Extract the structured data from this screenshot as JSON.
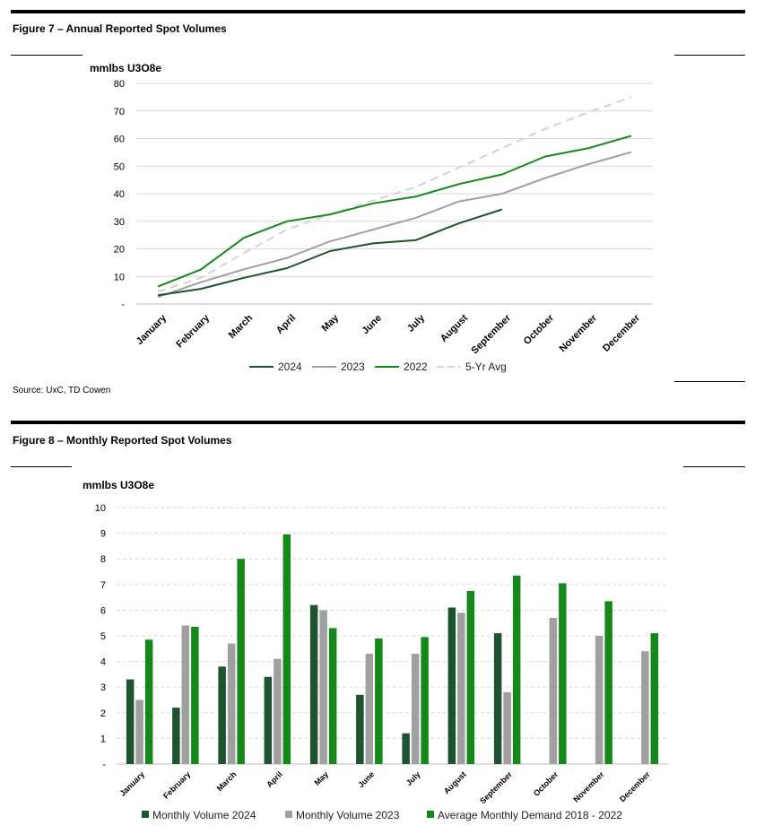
{
  "figure7": {
    "title": "Figure 7 – Annual Reported Spot Volumes",
    "source": "Source: UxC, TD Cowen"
  },
  "figure8": {
    "title": "Figure 8 – Monthly Reported Spot Volumes"
  },
  "colors": {
    "dark_green": "#1e5230",
    "gray": "#a0a0a0",
    "green": "#15881a",
    "light_gray": "#d3d3d3",
    "grid": "#d9d9d9"
  },
  "chart_data": [
    {
      "type": "line",
      "title": "Figure 7 – Annual Reported Spot Volumes",
      "ylabel": "mmlbs U3O8e",
      "xlabel": "",
      "ylim": [
        0,
        80
      ],
      "yticks": [
        "-",
        "10",
        "20",
        "30",
        "40",
        "50",
        "60",
        "70",
        "80"
      ],
      "categories": [
        "January",
        "February",
        "March",
        "April",
        "May",
        "June",
        "July",
        "August",
        "September",
        "October",
        "November",
        "December"
      ],
      "series": [
        {
          "name": "2024",
          "values": [
            3.2,
            5.5,
            9.5,
            13,
            19.2,
            22,
            23.2,
            29.3,
            34.3,
            null,
            null,
            null
          ]
        },
        {
          "name": "2023",
          "values": [
            2.5,
            7.9,
            12.6,
            16.7,
            22.7,
            27,
            31.3,
            37.2,
            40,
            45.7,
            50.7,
            55.1
          ]
        },
        {
          "name": "2022",
          "values": [
            6.3,
            12.5,
            24,
            30,
            32.5,
            36.5,
            39,
            43.5,
            47,
            53.5,
            56.5,
            61
          ]
        },
        {
          "name": "5-Yr Avg",
          "values": [
            4.5,
            9.5,
            18.5,
            27,
            32.5,
            37.5,
            42.5,
            49.5,
            56.5,
            63.5,
            69.5,
            75
          ]
        }
      ],
      "legend": "bottom"
    },
    {
      "type": "bar",
      "title": "Figure 8 – Monthly Reported Spot Volumes",
      "ylabel": "mmlbs U3O8e",
      "xlabel": "",
      "ylim": [
        0,
        10
      ],
      "yticks": [
        "-",
        "1",
        "2",
        "3",
        "4",
        "5",
        "6",
        "7",
        "8",
        "9",
        "10"
      ],
      "categories": [
        "January",
        "February",
        "March",
        "April",
        "May",
        "June",
        "July",
        "August",
        "September",
        "October",
        "November",
        "December"
      ],
      "series": [
        {
          "name": "Monthly Volume 2024",
          "values": [
            3.3,
            2.2,
            3.8,
            3.4,
            6.2,
            2.7,
            1.2,
            6.1,
            5.1,
            null,
            null,
            null
          ]
        },
        {
          "name": "Monthly Volume 2023",
          "values": [
            2.5,
            5.4,
            4.7,
            4.1,
            6.0,
            4.3,
            4.3,
            5.9,
            2.8,
            5.7,
            5.0,
            4.4
          ]
        },
        {
          "name": "Average Monthly Demand 2018 - 2022",
          "values": [
            4.85,
            5.35,
            8.0,
            8.95,
            5.3,
            4.9,
            4.95,
            6.75,
            7.35,
            7.05,
            6.35,
            5.1
          ]
        }
      ],
      "legend": "bottom"
    }
  ]
}
